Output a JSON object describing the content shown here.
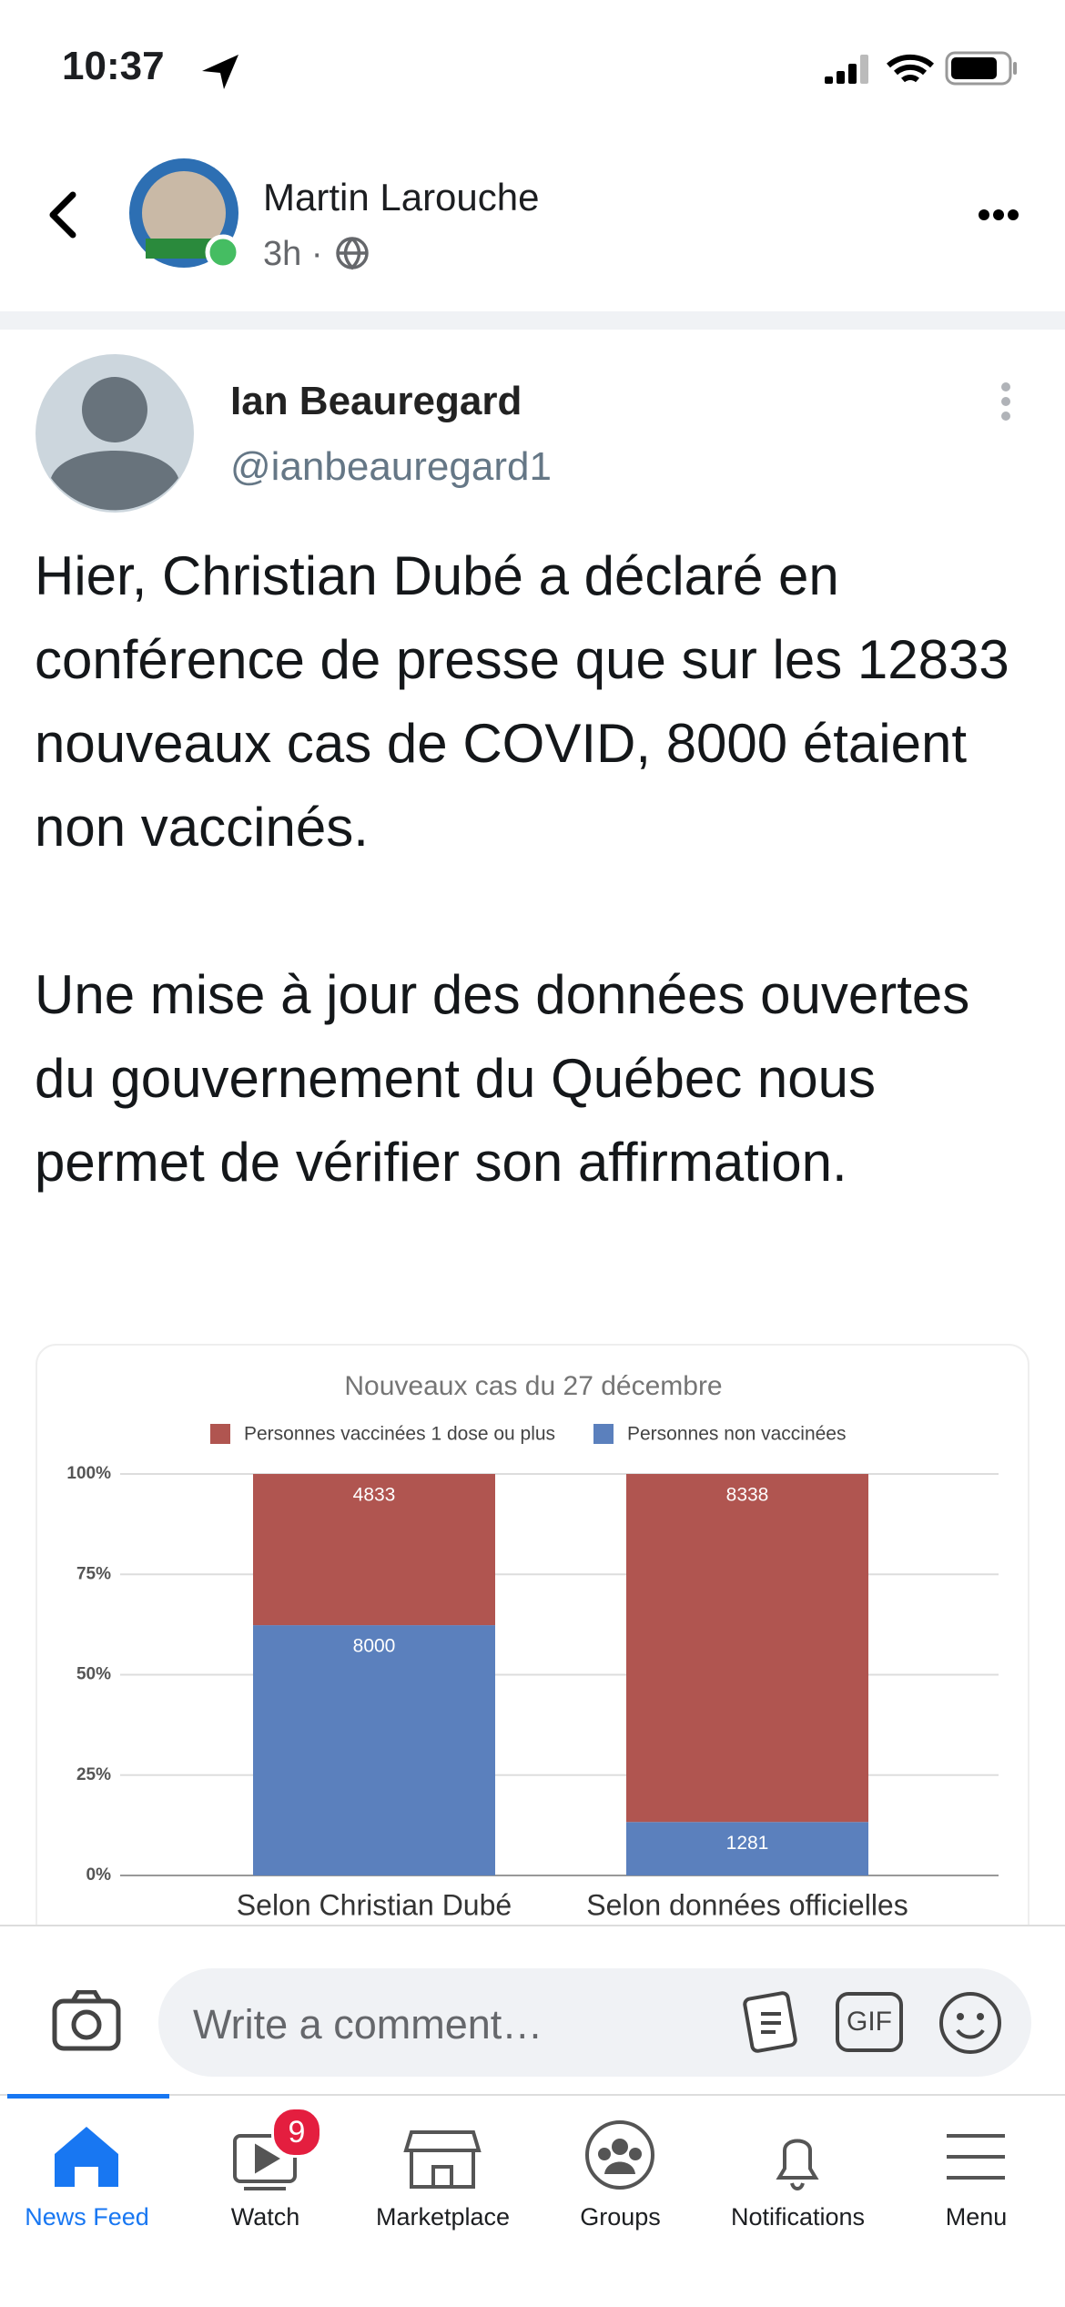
{
  "status_bar": {
    "time": "10:37"
  },
  "post_header": {
    "author": "Martin Larouche",
    "time": "3h ·"
  },
  "tweet": {
    "name": "Ian Beauregard",
    "handle": "@ianbeauregard1",
    "paragraphs": [
      "Hier, Christian Dubé a déclaré en conférence de presse que sur les 12833 nouveaux cas de COVID, 8000 étaient non vaccinés.",
      "Une mise à jour des données ouvertes du gouvernement du Québec nous permet de vérifier son affirmation."
    ]
  },
  "chart_data": {
    "type": "bar",
    "stacked": "percent",
    "title": "Nouveaux cas du 27 décembre",
    "categories": [
      "Selon Christian Dubé",
      "Selon données officielles"
    ],
    "series": [
      {
        "name": "Personnes vaccinées 1 dose ou plus",
        "color": "#b05550",
        "values": [
          4833,
          8338
        ]
      },
      {
        "name": "Personnes non vaccinées",
        "color": "#5b80bd",
        "values": [
          8000,
          1281
        ]
      }
    ],
    "ylim": [
      0,
      100
    ],
    "yticks": [
      {
        "value": 0,
        "label": "0%"
      },
      {
        "value": 25,
        "label": "25%"
      },
      {
        "value": 50,
        "label": "50%"
      },
      {
        "value": 75,
        "label": "75%"
      },
      {
        "value": 100,
        "label": "100%"
      }
    ],
    "grid": true,
    "legend": "top"
  },
  "comment_bar": {
    "placeholder": "Write a comment…",
    "gif": "GIF"
  },
  "tab_bar": {
    "tabs": [
      {
        "label": "News Feed"
      },
      {
        "label": "Watch"
      },
      {
        "label": "Marketplace"
      },
      {
        "label": "Groups"
      },
      {
        "label": "Notifications"
      },
      {
        "label": "Menu"
      }
    ],
    "watch_badge": 9
  }
}
